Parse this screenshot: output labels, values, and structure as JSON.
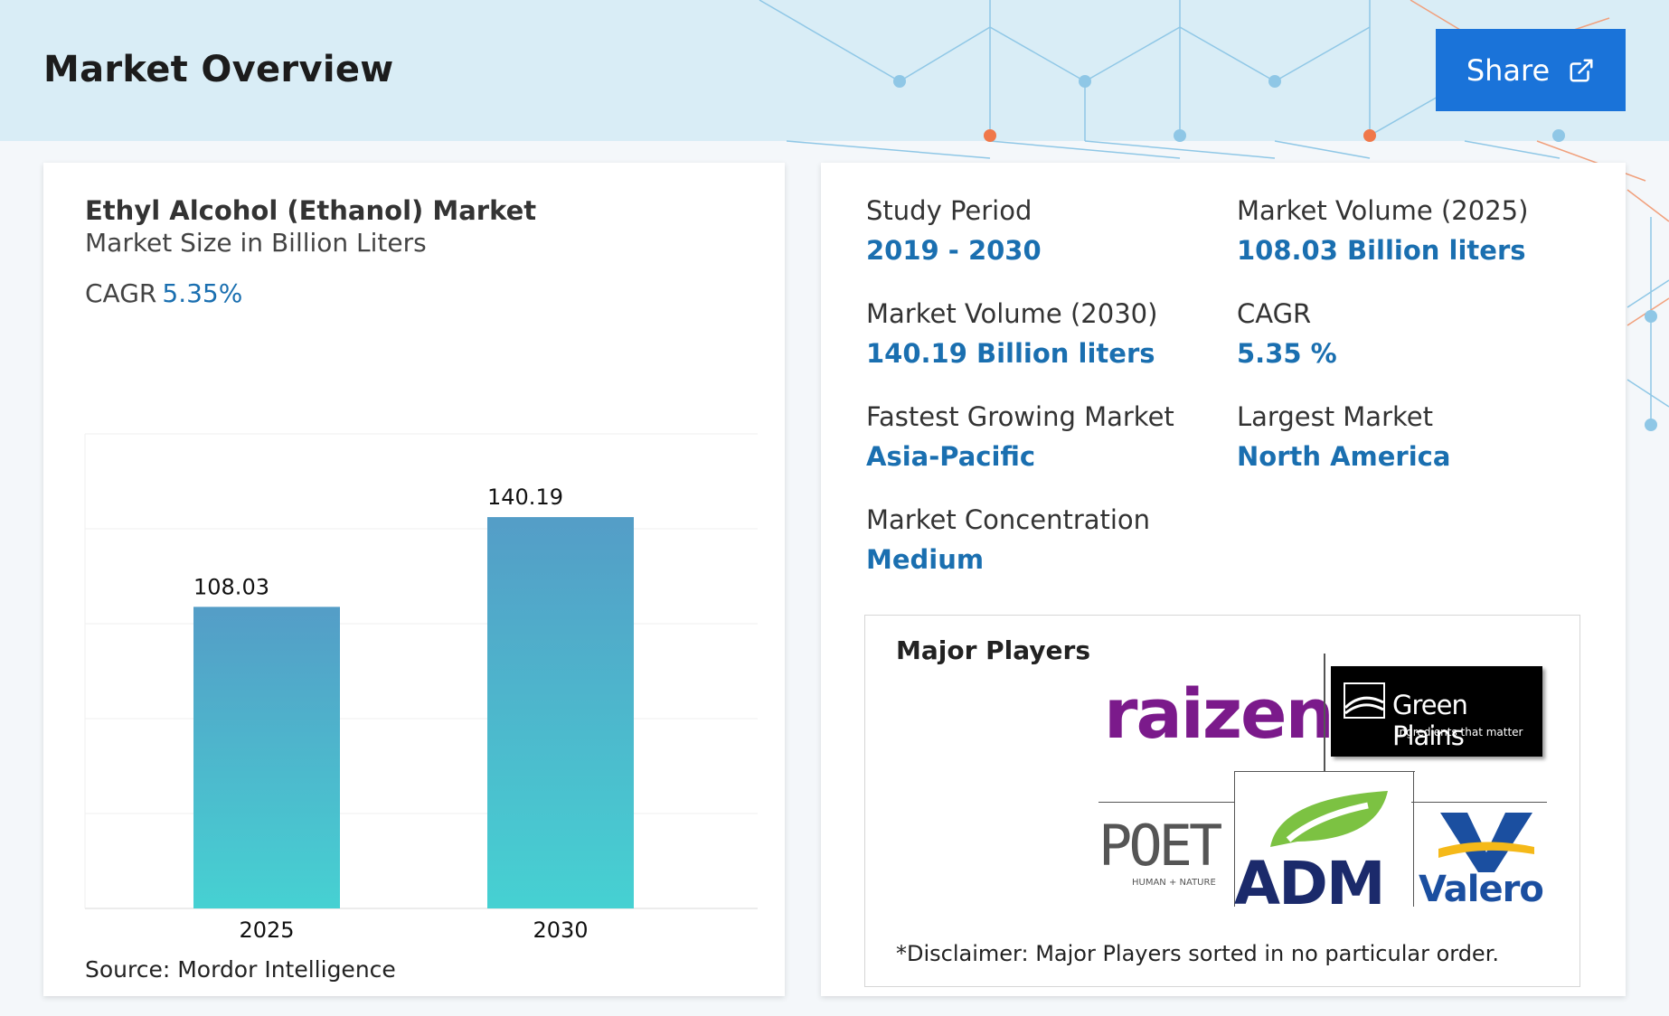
{
  "header": {
    "title": "Market Overview",
    "share_label": "Share"
  },
  "chart_card": {
    "title": "Ethyl Alcohol (Ethanol) Market",
    "subtitle": "Market Size in Billion Liters",
    "cagr_label": "CAGR",
    "cagr_value": "5.35%",
    "source": "Source: Mordor Intelligence"
  },
  "chart_data": {
    "type": "bar",
    "categories": [
      "2025",
      "2030"
    ],
    "values": [
      108.03,
      140.19
    ],
    "data_labels": [
      "108.03",
      "140.19"
    ],
    "ylim": [
      0,
      170
    ],
    "grid": true,
    "colors": {
      "bar_top": "#549dc7",
      "bar_bottom": "#46d1d2"
    }
  },
  "stats": {
    "study_period": {
      "label": "Study Period",
      "value": "2019 - 2030"
    },
    "volume_2025": {
      "label": "Market Volume (2025)",
      "value": "108.03 Billion liters"
    },
    "volume_2030": {
      "label": "Market Volume (2030)",
      "value": "140.19 Billion liters"
    },
    "cagr": {
      "label": "CAGR",
      "value": "5.35 %"
    },
    "fastest": {
      "label": "Fastest Growing Market",
      "value": "Asia-Pacific"
    },
    "largest": {
      "label": "Largest Market",
      "value": "North America"
    },
    "concentration": {
      "label": "Market Concentration",
      "value": "Medium"
    }
  },
  "players": {
    "title": "Major Players",
    "disclaimer": "*Disclaimer: Major Players sorted in no particular order.",
    "logos": {
      "raizen": "raizen",
      "green_plains": "Green Plains",
      "green_plains_tag": "Ingredients that matter",
      "poet": "POET",
      "poet_tag": "HUMAN + NATURE",
      "adm": "ADM",
      "valero": "Valero"
    }
  },
  "colors": {
    "accent_blue": "#1a6fb0",
    "share_button": "#1a73d9",
    "banner": "#d9edf6"
  }
}
